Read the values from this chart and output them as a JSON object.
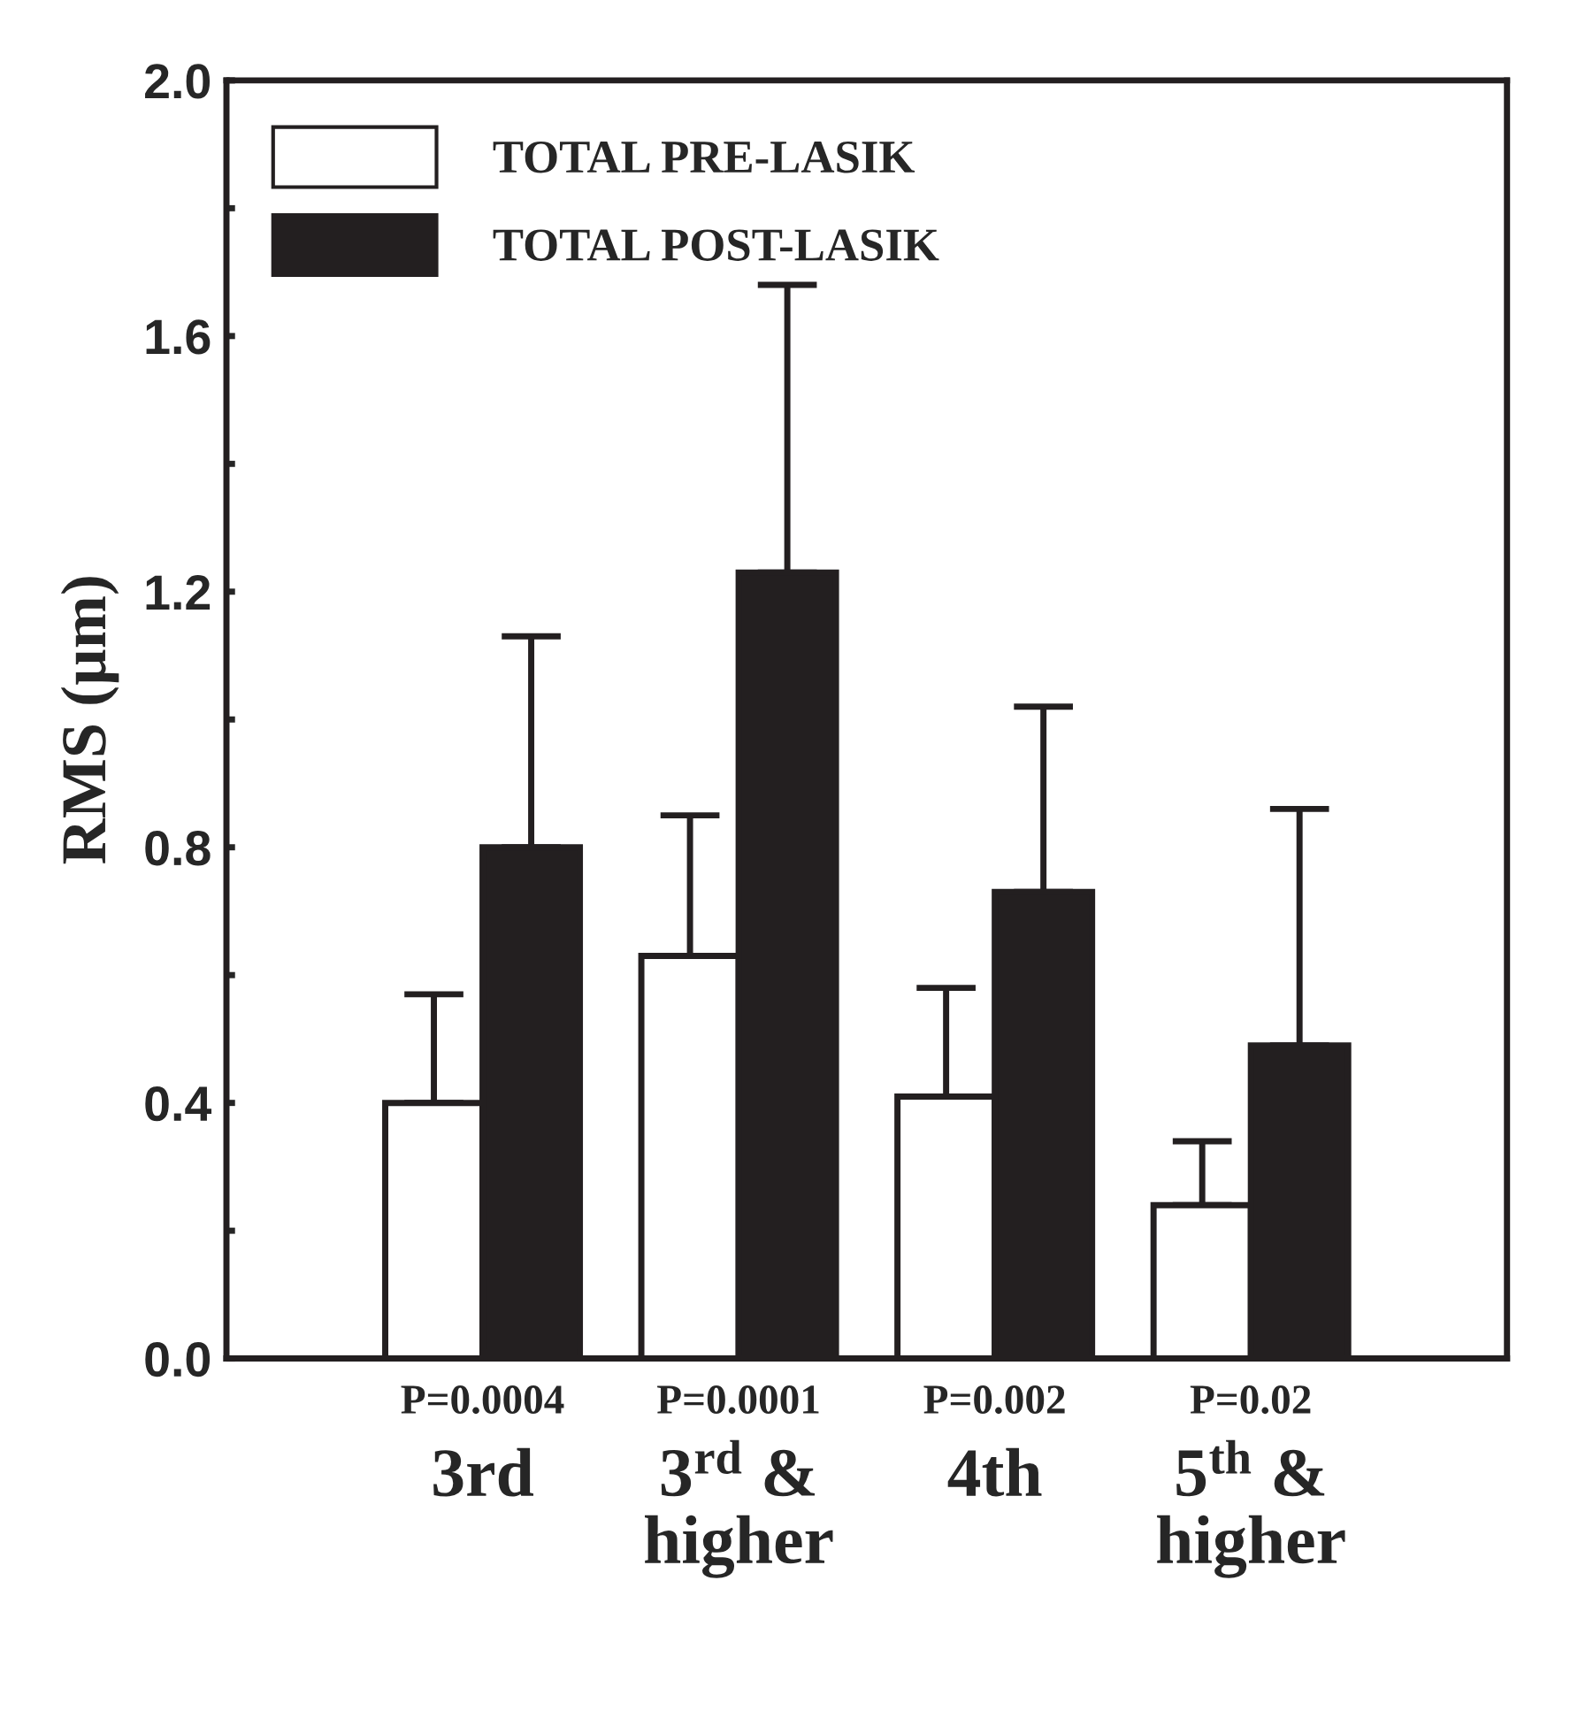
{
  "chart_data": {
    "type": "bar",
    "ylabel": "RMS (µm)",
    "categories": [
      "3rd",
      "3$^{rd}$ &\nhigher",
      "4th",
      "5$^{th}$ &\nhigher"
    ],
    "series": [
      {
        "name": "TOTAL PRE-LASIK",
        "color": "#ffffff",
        "values": [
          0.4,
          0.63,
          0.41,
          0.24
        ],
        "errors": [
          [
            0.4,
            0.57
          ],
          [
            0.63,
            0.85
          ],
          [
            0.41,
            0.58
          ],
          [
            0.24,
            0.34
          ]
        ]
      },
      {
        "name": "TOTAL POST-LASIK",
        "color": "#231f20",
        "values": [
          0.8,
          1.23,
          0.73,
          0.49
        ],
        "errors": [
          [
            0.8,
            1.13
          ],
          [
            1.23,
            1.68
          ],
          [
            0.73,
            1.02
          ],
          [
            0.49,
            0.86
          ]
        ]
      }
    ],
    "ylim": [
      0,
      2.0
    ],
    "yticks": [
      {
        "value": 0,
        "label": "0.0"
      },
      {
        "value": 0.2,
        "label": null
      },
      {
        "value": 0.4,
        "label": "0.4"
      },
      {
        "value": 0.6,
        "label": null
      },
      {
        "value": 0.8,
        "label": "0.8"
      },
      {
        "value": 1.0,
        "label": null
      },
      {
        "value": 1.2,
        "label": "1.2"
      },
      {
        "value": 1.4,
        "label": null
      },
      {
        "value": 1.6,
        "label": "1.6"
      },
      {
        "value": 1.8,
        "label": null
      },
      {
        "value": 2.0,
        "label": "2.0"
      }
    ],
    "annotations": [
      "P=0.0004",
      "P=0.0001",
      "P=0.002",
      "P=0.02"
    ],
    "legend": "top left",
    "grid": false
  }
}
